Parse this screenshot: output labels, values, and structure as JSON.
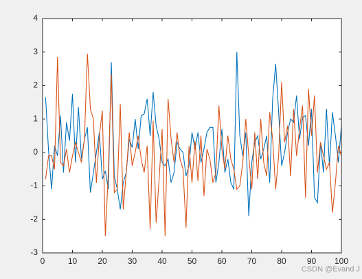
{
  "chart_data": {
    "type": "line",
    "x": [
      1,
      2,
      3,
      4,
      5,
      6,
      7,
      8,
      9,
      10,
      11,
      12,
      13,
      14,
      15,
      16,
      17,
      18,
      19,
      20,
      21,
      22,
      23,
      24,
      25,
      26,
      27,
      28,
      29,
      30,
      31,
      32,
      33,
      34,
      35,
      36,
      37,
      38,
      39,
      40,
      41,
      42,
      43,
      44,
      45,
      46,
      47,
      48,
      49,
      50,
      51,
      52,
      53,
      54,
      55,
      56,
      57,
      58,
      59,
      60,
      61,
      62,
      63,
      64,
      65,
      66,
      67,
      68,
      69,
      70,
      71,
      72,
      73,
      74,
      75,
      76,
      77,
      78,
      79,
      80,
      81,
      82,
      83,
      84,
      85,
      86,
      87,
      88,
      89,
      90,
      91,
      92,
      93,
      94,
      95,
      96,
      97,
      98,
      99,
      100
    ],
    "series": [
      {
        "color": "#0072bd",
        "values": [
          1.65,
          0.05,
          -1.1,
          0.2,
          -0.1,
          1.1,
          -0.6,
          0.9,
          0.35,
          1.75,
          -0.3,
          1.35,
          -0.2,
          0.4,
          0.75,
          -1.2,
          -0.6,
          0,
          0.6,
          -0.8,
          -0.55,
          -1.1,
          2.7,
          -0.7,
          -1.1,
          -1.7,
          -0.9,
          -0.6,
          0.4,
          0.15,
          1.0,
          0.1,
          1.1,
          1.15,
          1.6,
          0.5,
          1.8,
          0.8,
          0.4,
          -0.3,
          -0.4,
          -0.2,
          -0.9,
          -0.6,
          0.3,
          0.1,
          0,
          -0.7,
          -0.4,
          0.6,
          0.1,
          0.6,
          -0.3,
          0.1,
          0.6,
          0.75,
          0.75,
          -0.9,
          -0.3,
          0.7,
          -0.6,
          -0.2,
          -0.9,
          -1.1,
          3.0,
          0.5,
          -0.1,
          0.6,
          -1.9,
          -0.3,
          0.3,
          0.5,
          -0.2,
          0.1,
          0.5,
          -0.9,
          1.6,
          2.65,
          1.2,
          -0.4,
          0,
          0.6,
          1.0,
          0.9,
          1.7,
          0.4,
          1.05,
          1.1,
          0.2,
          1.3,
          -1.35,
          -1.5,
          0.3,
          -0.6,
          1.3,
          -0.4,
          1.2,
          0.5,
          -0.3,
          0.8
        ]
      },
      {
        "color": "#d95319",
        "values": [
          -0.8,
          -0.1,
          -0.1,
          -0.5,
          2.85,
          -0.3,
          -0.4,
          0.1,
          -0.6,
          -0.1,
          0.3,
          0,
          -0.3,
          0.4,
          2.95,
          1.3,
          1.0,
          -0.9,
          0.5,
          1.25,
          -2.5,
          -0.6,
          2.35,
          -1.2,
          -1.1,
          1.45,
          -1.7,
          -0.6,
          0.6,
          -0.4,
          0,
          0.5,
          -0.2,
          -0.6,
          0.2,
          -2.3,
          0.95,
          -2.1,
          -0.8,
          0.7,
          -2.5,
          1.6,
          0.4,
          -0.3,
          0.6,
          -0.2,
          -0.5,
          -2.25,
          0.2,
          -0.9,
          0.35,
          -0.85,
          0.5,
          -1.3,
          0.1,
          -0.2,
          -0.9,
          -0.6,
          1.4,
          0.1,
          -0.5,
          0.5,
          -0.2,
          -0.5,
          -1.1,
          -1.0,
          -0.3,
          1.0,
          -0.1,
          -1.1,
          0.6,
          -0.8,
          1.0,
          -0.3,
          -0.7,
          1.2,
          0.4,
          -1.1,
          -0.1,
          2.1,
          0.3,
          0.8,
          -0.7,
          1.3,
          -0.1,
          0.7,
          1.4,
          -1.35,
          1.9,
          0.5,
          1.7,
          -0.6,
          0.3,
          -0.1,
          -0.5,
          -0.3,
          -1.8,
          -0.9,
          0.2,
          -0.1
        ]
      }
    ],
    "xlim": [
      0,
      100
    ],
    "xticks": [
      0,
      10,
      20,
      30,
      40,
      50,
      60,
      70,
      80,
      90,
      100
    ],
    "ylim": [
      -3,
      4
    ],
    "yticks": [
      -3,
      -2,
      -1,
      0,
      1,
      2,
      3,
      4
    ],
    "grid": false,
    "watermark": "CSDN @Evand J"
  }
}
